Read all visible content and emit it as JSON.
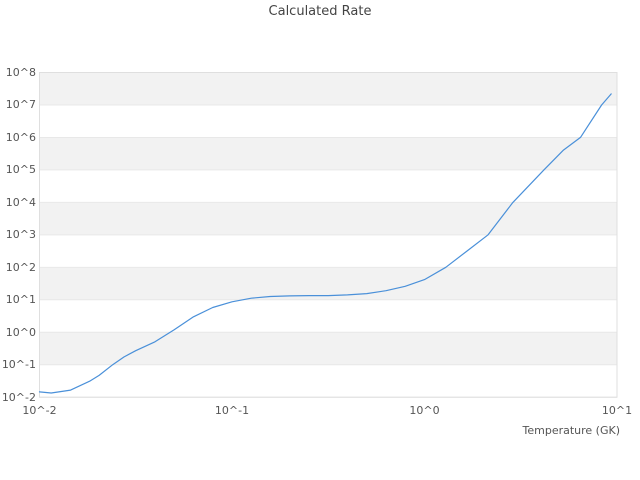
{
  "chart_data": {
    "type": "line",
    "title": "Calculated Rate",
    "xlabel": "Temperature (GK)",
    "ylabel": "",
    "xscale": "log",
    "yscale": "log",
    "xlim": [
      0.01,
      10
    ],
    "ylim": [
      0.01,
      100000000
    ],
    "x_ticks": [
      {
        "value": 0.01,
        "label": "10^-2"
      },
      {
        "value": 0.1,
        "label": "10^-1"
      },
      {
        "value": 1,
        "label": "10^0"
      },
      {
        "value": 10,
        "label": "10^1"
      }
    ],
    "y_ticks": [
      {
        "value": 100000000,
        "label": "10^8"
      },
      {
        "value": 10000000,
        "label": "10^7"
      },
      {
        "value": 1000000,
        "label": "10^6"
      },
      {
        "value": 100000,
        "label": "10^5"
      },
      {
        "value": 10000,
        "label": "10^4"
      },
      {
        "value": 1000,
        "label": "10^3"
      },
      {
        "value": 100,
        "label": "10^2"
      },
      {
        "value": 10,
        "label": "10^1"
      },
      {
        "value": 1,
        "label": "10^0"
      },
      {
        "value": 0.1,
        "label": "10^-1"
      },
      {
        "value": 0.01,
        "label": "10^-2"
      }
    ],
    "grid": "horizontal gridlines at each decade with alternating gray bands",
    "legend": "none",
    "series": [
      {
        "name": "calculated rate",
        "color": "#4a90d9",
        "points": [
          [
            0.01,
            0.0146
          ],
          [
            0.0115,
            0.0135
          ],
          [
            0.0145,
            0.0166
          ],
          [
            0.0182,
            0.031
          ],
          [
            0.0204,
            0.047
          ],
          [
            0.024,
            0.1
          ],
          [
            0.0275,
            0.174
          ],
          [
            0.0316,
            0.27
          ],
          [
            0.0398,
            0.51
          ],
          [
            0.0501,
            1.2
          ],
          [
            0.0631,
            3.0
          ],
          [
            0.0794,
            5.8
          ],
          [
            0.1,
            8.7
          ],
          [
            0.126,
            11.2
          ],
          [
            0.158,
            12.6
          ],
          [
            0.2,
            13.2
          ],
          [
            0.251,
            13.5
          ],
          [
            0.316,
            13.5
          ],
          [
            0.398,
            14.1
          ],
          [
            0.501,
            15.5
          ],
          [
            0.631,
            19
          ],
          [
            0.794,
            26
          ],
          [
            1.0,
            42
          ],
          [
            1.29,
            100
          ],
          [
            1.66,
            316
          ],
          [
            2.14,
            1000
          ],
          [
            2.88,
            10000
          ],
          [
            4.17,
            100000
          ],
          [
            5.25,
            400000
          ],
          [
            6.46,
            1000000
          ],
          [
            8.32,
            10000000
          ],
          [
            9.33,
            22000000
          ]
        ]
      }
    ],
    "colors": {
      "curve": "#4a90d9",
      "band_fill": "#f2f2f2",
      "gridline": "#e8e8e8",
      "plot_border": "#dfdfdf",
      "title_text": "#444444",
      "tick_text": "#555555",
      "background": "#ffffff"
    }
  }
}
